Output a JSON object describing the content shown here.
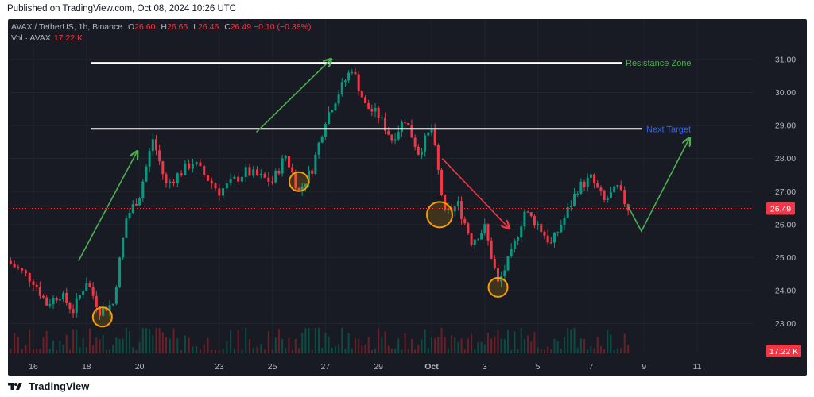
{
  "header": {
    "published": "Published on TradingView.com, Oct 08, 2024 10:26 UTC"
  },
  "legend": {
    "symbol": "AVAX / TetherUS, 1h, Binance",
    "open_label": "O",
    "open": "26.60",
    "high_label": "H",
    "high": "26.65",
    "low_label": "L",
    "low": "26.46",
    "close_label": "C",
    "close": "26.49",
    "change": "−0.10 (−0.38%)",
    "vol_label": "Vol · AVAX",
    "vol": "17.22 K"
  },
  "footer": {
    "brand": "TradingView"
  },
  "colors": {
    "up": "#089981",
    "down": "#f23645",
    "background": "#181b24",
    "resistance_text": "#4caf50",
    "next_target_text": "#2962ff",
    "arrow_green": "#4caf50",
    "arrow_red": "#f23645",
    "circle": "#f59f00",
    "price_line": "#f23645"
  },
  "chart_data": {
    "type": "candlestick",
    "symbol": "AVAX / TetherUS",
    "timeframe": "1h",
    "exchange": "Binance",
    "y_ticks": [
      "23.00",
      "24.00",
      "25.00",
      "26.00",
      "27.00",
      "28.00",
      "29.00",
      "30.00",
      "31.00"
    ],
    "x_ticks": [
      "16",
      "18",
      "20",
      "23",
      "25",
      "27",
      "29",
      "Oct",
      "3",
      "5",
      "7",
      "9",
      "11"
    ],
    "ylim": [
      22.1,
      31.6
    ],
    "price_path": [
      {
        "t": "Sep 15",
        "p": 24.9
      },
      {
        "t": "Sep 16",
        "p": 24.3
      },
      {
        "t": "Sep 16.5",
        "p": 23.6
      },
      {
        "t": "Sep 17",
        "p": 23.9
      },
      {
        "t": "Sep 17.5",
        "p": 23.4
      },
      {
        "t": "Sep 18",
        "p": 24.3
      },
      {
        "t": "Sep 18.5",
        "p": 23.4
      },
      {
        "t": "Sep 19",
        "p": 23.6
      },
      {
        "t": "Sep 19.5",
        "p": 26.2
      },
      {
        "t": "Sep 20",
        "p": 26.9
      },
      {
        "t": "Sep 20.5",
        "p": 28.6
      },
      {
        "t": "Sep 21",
        "p": 27.2
      },
      {
        "t": "Sep 22",
        "p": 27.9
      },
      {
        "t": "Sep 23",
        "p": 27.0
      },
      {
        "t": "Sep 24",
        "p": 27.6
      },
      {
        "t": "Sep 25",
        "p": 27.3
      },
      {
        "t": "Sep 25.5",
        "p": 28.1
      },
      {
        "t": "Sep 26",
        "p": 27.0
      },
      {
        "t": "Sep 26.5",
        "p": 27.7
      },
      {
        "t": "Sep 27",
        "p": 29.2
      },
      {
        "t": "Sep 27.5",
        "p": 30.0
      },
      {
        "t": "Sep 28",
        "p": 30.75
      },
      {
        "t": "Sep 28.5",
        "p": 29.6
      },
      {
        "t": "Sep 29",
        "p": 29.3
      },
      {
        "t": "Sep 29.5",
        "p": 28.6
      },
      {
        "t": "Sep 30",
        "p": 29.2
      },
      {
        "t": "Sep 30.5",
        "p": 28.2
      },
      {
        "t": "Oct 1",
        "p": 28.9
      },
      {
        "t": "Oct 1.5",
        "p": 26.3
      },
      {
        "t": "Oct 2",
        "p": 26.6
      },
      {
        "t": "Oct 2.5",
        "p": 25.5
      },
      {
        "t": "Oct 3",
        "p": 25.9
      },
      {
        "t": "Oct 3.5",
        "p": 24.2
      },
      {
        "t": "Oct 4",
        "p": 25.1
      },
      {
        "t": "Oct 4.5",
        "p": 26.4
      },
      {
        "t": "Oct 5",
        "p": 26.0
      },
      {
        "t": "Oct 5.5",
        "p": 25.4
      },
      {
        "t": "Oct 6",
        "p": 26.2
      },
      {
        "t": "Oct 6.5",
        "p": 27.1
      },
      {
        "t": "Oct 7",
        "p": 27.4
      },
      {
        "t": "Oct 7.5",
        "p": 26.7
      },
      {
        "t": "Oct 8",
        "p": 27.1
      },
      {
        "t": "Oct 8.4",
        "p": 26.49
      }
    ],
    "last_price_label": "26.49",
    "last_volume_label": "17.22 K",
    "annotations": {
      "resistance": {
        "label": "Resistance Zone",
        "price": 30.9
      },
      "next_target": {
        "label": "Next Target",
        "price": 28.9
      },
      "circles": [
        {
          "t": "Sep 18.6",
          "p": 23.2
        },
        {
          "t": "Sep 26",
          "p": 27.3
        },
        {
          "t": "Oct 1.3",
          "p": 26.3
        },
        {
          "t": "Oct 3.5",
          "p": 24.1
        }
      ]
    },
    "grid": true
  }
}
